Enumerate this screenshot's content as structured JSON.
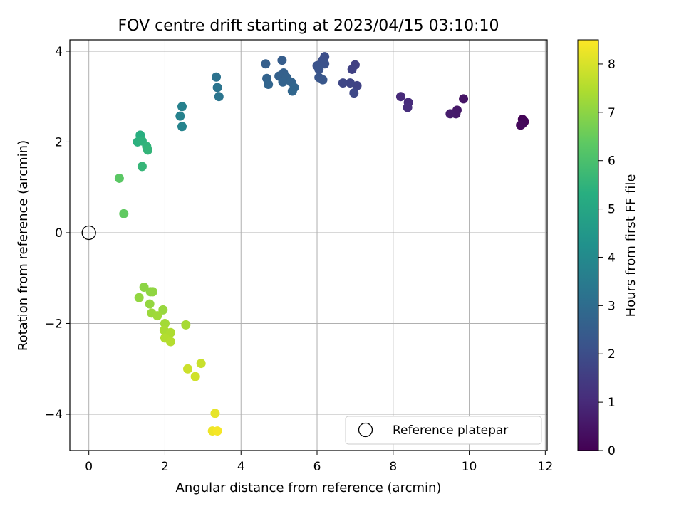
{
  "chart_data": {
    "type": "scatter",
    "title": "FOV centre drift starting at 2023/04/15 03:10:10",
    "xlabel": "Angular distance from reference (arcmin)",
    "ylabel": "Rotation from reference (arcmin)",
    "xlim": [
      -0.5,
      12.05
    ],
    "ylim": [
      -4.8,
      4.25
    ],
    "xticks": [
      0,
      2,
      4,
      6,
      8,
      10,
      12
    ],
    "yticks": [
      -4,
      -2,
      0,
      2,
      4
    ],
    "xtick_labels": [
      "0",
      "2",
      "4",
      "6",
      "8",
      "10",
      "12"
    ],
    "ytick_labels": [
      "−4",
      "−2",
      "0",
      "2",
      "4"
    ],
    "grid": true,
    "legend": {
      "position": "lower-right",
      "entries": [
        {
          "label": "Reference platepar",
          "marker": "open-circle",
          "x": 0,
          "y": 0
        }
      ]
    },
    "colorbar": {
      "label": "Hours from first FF file",
      "range": [
        0,
        8.5
      ],
      "ticks": [
        0,
        1,
        2,
        3,
        4,
        5,
        6,
        7,
        8
      ],
      "tick_labels": [
        "0",
        "1",
        "2",
        "3",
        "4",
        "5",
        "6",
        "7",
        "8"
      ],
      "colormap": "viridis"
    },
    "series": [
      {
        "points": [
          {
            "x": 11.4,
            "y": 2.5,
            "c": 0.05
          },
          {
            "x": 11.45,
            "y": 2.45,
            "c": 0.1
          },
          {
            "x": 11.4,
            "y": 2.4,
            "c": 0.15
          },
          {
            "x": 11.35,
            "y": 2.37,
            "c": 0.2
          },
          {
            "x": 9.85,
            "y": 2.95,
            "c": 0.45
          },
          {
            "x": 9.68,
            "y": 2.7,
            "c": 0.55
          },
          {
            "x": 9.65,
            "y": 2.62,
            "c": 0.6
          },
          {
            "x": 9.5,
            "y": 2.62,
            "c": 0.65
          },
          {
            "x": 8.2,
            "y": 3.0,
            "c": 1.0
          },
          {
            "x": 8.4,
            "y": 2.87,
            "c": 1.05
          },
          {
            "x": 8.38,
            "y": 2.76,
            "c": 1.1
          },
          {
            "x": 7.0,
            "y": 3.7,
            "c": 1.6
          },
          {
            "x": 6.92,
            "y": 3.6,
            "c": 1.65
          },
          {
            "x": 7.05,
            "y": 3.24,
            "c": 1.7
          },
          {
            "x": 6.87,
            "y": 3.3,
            "c": 1.75
          },
          {
            "x": 6.68,
            "y": 3.3,
            "c": 1.8
          },
          {
            "x": 6.97,
            "y": 3.08,
            "c": 1.85
          },
          {
            "x": 6.2,
            "y": 3.88,
            "c": 2.0
          },
          {
            "x": 6.15,
            "y": 3.8,
            "c": 2.05
          },
          {
            "x": 6.1,
            "y": 3.72,
            "c": 2.1
          },
          {
            "x": 6.2,
            "y": 3.72,
            "c": 2.12
          },
          {
            "x": 6.0,
            "y": 3.68,
            "c": 2.15
          },
          {
            "x": 6.05,
            "y": 3.6,
            "c": 2.2
          },
          {
            "x": 6.05,
            "y": 3.42,
            "c": 2.25
          },
          {
            "x": 6.15,
            "y": 3.37,
            "c": 2.3
          },
          {
            "x": 5.08,
            "y": 3.8,
            "c": 2.5
          },
          {
            "x": 4.65,
            "y": 3.72,
            "c": 2.55
          },
          {
            "x": 5.12,
            "y": 3.52,
            "c": 2.6
          },
          {
            "x": 5.0,
            "y": 3.45,
            "c": 2.62
          },
          {
            "x": 5.2,
            "y": 3.42,
            "c": 2.65
          },
          {
            "x": 4.68,
            "y": 3.4,
            "c": 2.68
          },
          {
            "x": 5.1,
            "y": 3.32,
            "c": 2.7
          },
          {
            "x": 5.32,
            "y": 3.32,
            "c": 2.72
          },
          {
            "x": 4.72,
            "y": 3.27,
            "c": 2.75
          },
          {
            "x": 5.4,
            "y": 3.2,
            "c": 2.78
          },
          {
            "x": 5.35,
            "y": 3.12,
            "c": 2.8
          },
          {
            "x": 3.35,
            "y": 3.43,
            "c": 3.2
          },
          {
            "x": 3.38,
            "y": 3.2,
            "c": 3.25
          },
          {
            "x": 3.42,
            "y": 3.0,
            "c": 3.3
          },
          {
            "x": 2.45,
            "y": 2.78,
            "c": 3.7
          },
          {
            "x": 2.4,
            "y": 2.57,
            "c": 3.75
          },
          {
            "x": 2.45,
            "y": 2.34,
            "c": 3.8
          },
          {
            "x": 1.35,
            "y": 2.15,
            "c": 5.3
          },
          {
            "x": 1.28,
            "y": 2.0,
            "c": 5.4
          },
          {
            "x": 1.4,
            "y": 2.02,
            "c": 5.45
          },
          {
            "x": 1.52,
            "y": 1.9,
            "c": 5.5
          },
          {
            "x": 1.55,
            "y": 1.82,
            "c": 5.55
          },
          {
            "x": 1.4,
            "y": 1.46,
            "c": 5.6
          },
          {
            "x": 0.8,
            "y": 1.2,
            "c": 6.3
          },
          {
            "x": 0.92,
            "y": 0.42,
            "c": 6.4
          },
          {
            "x": 1.45,
            "y": -1.2,
            "c": 7.0
          },
          {
            "x": 1.62,
            "y": -1.3,
            "c": 7.02
          },
          {
            "x": 1.68,
            "y": -1.3,
            "c": 7.05
          },
          {
            "x": 1.32,
            "y": -1.43,
            "c": 7.08
          },
          {
            "x": 1.6,
            "y": -1.57,
            "c": 7.1
          },
          {
            "x": 1.95,
            "y": -1.7,
            "c": 7.15
          },
          {
            "x": 1.65,
            "y": -1.77,
            "c": 7.2
          },
          {
            "x": 1.8,
            "y": -1.83,
            "c": 7.25
          },
          {
            "x": 2.55,
            "y": -2.03,
            "c": 7.35
          },
          {
            "x": 2.0,
            "y": -2.0,
            "c": 7.3
          },
          {
            "x": 1.98,
            "y": -2.15,
            "c": 7.4
          },
          {
            "x": 2.15,
            "y": -2.2,
            "c": 7.45
          },
          {
            "x": 2.0,
            "y": -2.32,
            "c": 7.5
          },
          {
            "x": 2.15,
            "y": -2.4,
            "c": 7.55
          },
          {
            "x": 2.95,
            "y": -2.88,
            "c": 7.8
          },
          {
            "x": 2.6,
            "y": -3.0,
            "c": 7.85
          },
          {
            "x": 2.8,
            "y": -3.17,
            "c": 7.9
          },
          {
            "x": 3.32,
            "y": -3.98,
            "c": 8.2
          },
          {
            "x": 3.25,
            "y": -4.37,
            "c": 8.3
          },
          {
            "x": 3.38,
            "y": -4.37,
            "c": 8.4
          }
        ]
      }
    ]
  }
}
